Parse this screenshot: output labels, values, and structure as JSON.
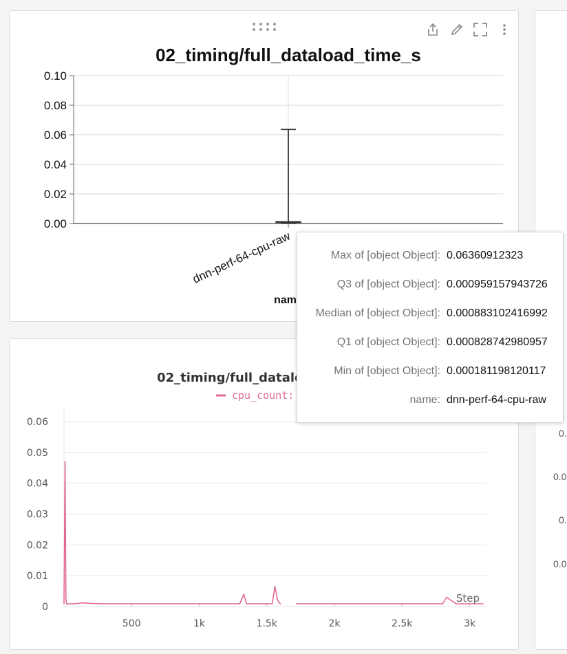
{
  "panels": {
    "top": {
      "title": "02_timing/full_dataload_time_s",
      "x_axis_label": "name",
      "toolbar": {
        "share_icon": "share-icon",
        "edit_icon": "pencil-icon",
        "fullscreen_icon": "fullscreen-icon",
        "more_icon": "more-vertical-icon",
        "drag_icon": "drag-handle-icon"
      }
    },
    "bottom": {
      "title": "02_timing/full_dataload_time_s",
      "legend_label": "cpu_count: 64",
      "x_axis_label": "Step"
    },
    "right_partial": {
      "tick_fragments": [
        "0.",
        "0.0",
        "0.",
        "0.0"
      ]
    }
  },
  "tooltip": {
    "rows": [
      {
        "label": "Max of [object Object]:",
        "value": "0.06360912323"
      },
      {
        "label": "Q3 of [object Object]:",
        "value": "0.000959157943726"
      },
      {
        "label": "Median of [object Object]:",
        "value": "0.000883102416992"
      },
      {
        "label": "Q1 of [object Object]:",
        "value": "0.000828742980957"
      },
      {
        "label": "Min of [object Object]:",
        "value": "0.000181198120117"
      },
      {
        "label": "name:",
        "value": "dnn-perf-64-cpu-raw"
      }
    ]
  },
  "colors": {
    "series_pink": "#e36a8e",
    "boxplot_line": "#333333",
    "grid": "#d9d9d9"
  },
  "chart_data": [
    {
      "type": "boxplot",
      "title": "02_timing/full_dataload_time_s",
      "xlabel": "name",
      "ylabel": "",
      "categories": [
        "dnn-perf-64-cpu-raw"
      ],
      "y_ticks": [
        "0.00",
        "0.02",
        "0.04",
        "0.06",
        "0.08",
        "0.10"
      ],
      "ylim": [
        0,
        0.1
      ],
      "grid": true,
      "boxes": [
        {
          "name": "dnn-perf-64-cpu-raw",
          "max": 0.06360912323,
          "q3": 0.000959157943726,
          "median": 0.000883102416992,
          "q1": 0.000828742980957,
          "min": 0.000181198120117
        }
      ]
    },
    {
      "type": "line",
      "title": "02_timing/full_dataload_time_s",
      "xlabel": "Step",
      "ylabel": "",
      "x_ticks": [
        "500",
        "1k",
        "1.5k",
        "2k",
        "2.5k",
        "3k"
      ],
      "x_tick_values": [
        500,
        1000,
        1500,
        2000,
        2500,
        3000
      ],
      "y_ticks": [
        "0",
        "0.01",
        "0.02",
        "0.03",
        "0.04",
        "0.05",
        "0.06"
      ],
      "y_tick_values": [
        0,
        0.01,
        0.02,
        0.03,
        0.04,
        0.05,
        0.06
      ],
      "xlim": [
        0,
        3130
      ],
      "ylim": [
        0,
        0.064
      ],
      "grid": true,
      "legend_position": "top-center",
      "series": [
        {
          "name": "cpu_count: 64",
          "color": "#e36a8e",
          "x": [
            0,
            5,
            8,
            12,
            15,
            20,
            30,
            60,
            100,
            130,
            200,
            300,
            400,
            500,
            600,
            700,
            800,
            900,
            1000,
            1100,
            1200,
            1300,
            1330,
            1350,
            1400,
            1500,
            1540,
            1560,
            1580,
            1600,
            1610,
            1700,
            1720,
            1800,
            1900,
            2000,
            2100,
            2200,
            2300,
            2400,
            2500,
            2600,
            2700,
            2800,
            2830,
            2900,
            3000,
            3100
          ],
          "y": [
            0.001,
            0.03,
            0.047,
            0.015,
            0.002,
            0.0008,
            0.0009,
            0.0009,
            0.001,
            0.0012,
            0.001,
            0.0009,
            0.0009,
            0.0009,
            0.0009,
            0.0009,
            0.0009,
            0.0009,
            0.0009,
            0.0009,
            0.0009,
            0.0009,
            0.004,
            0.0009,
            0.0009,
            0.0009,
            0.0009,
            0.0065,
            0.002,
            0.0009,
            null,
            null,
            0.0009,
            0.0009,
            0.0009,
            0.0009,
            0.0009,
            0.0009,
            0.0009,
            0.0009,
            0.0009,
            0.0009,
            0.0009,
            0.0009,
            0.003,
            0.0009,
            0.0009,
            0.0009
          ]
        }
      ]
    }
  ]
}
